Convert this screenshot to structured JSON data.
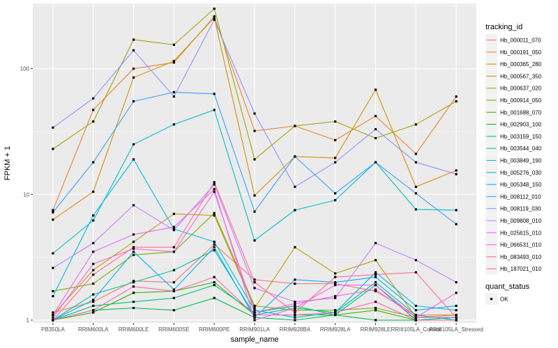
{
  "chart_data": {
    "type": "line",
    "xlabel": "sample_name",
    "ylabel": "FPKM + 1",
    "y_scale": "log10",
    "ylim": [
      0.95,
      330
    ],
    "y_ticks": [
      {
        "value": 1,
        "label": "1"
      },
      {
        "value": 10,
        "label": "10"
      },
      {
        "value": 100,
        "label": "100"
      }
    ],
    "categories": [
      "PB350LA",
      "RRIM600LA",
      "RRIM600LE",
      "RRIM600SE",
      "RRIM600PE",
      "RRIM901LA",
      "RRIM928BA",
      "RRIM928LA",
      "RRIM928LE",
      "RRIII105LA_Control",
      "RRIII105LA_Stressed"
    ],
    "panel_background": "#ebebeb",
    "grid_color": "#ffffff",
    "legend": {
      "title": "tracking_id",
      "position": "right"
    },
    "legend2": {
      "title": "quant_status",
      "items": [
        {
          "label": "OK"
        }
      ]
    },
    "series": [
      {
        "name": "Hb_000011_070",
        "color": "#F8766D",
        "values": [
          1.15,
          1.4,
          2.05,
          2.0,
          4.0,
          2.1,
          1.95,
          1.95,
          1.7,
          1.1,
          1.1
        ]
      },
      {
        "name": "Hb_000191_050",
        "color": "#EA8331",
        "values": [
          7.5,
          47,
          100,
          112,
          260,
          32,
          35,
          27,
          42,
          21,
          60
        ]
      },
      {
        "name": "Hb_000365_280",
        "color": "#D89000",
        "values": [
          6.3,
          10.5,
          85,
          115,
          255,
          9.8,
          20,
          19.5,
          68,
          11.5,
          15.5
        ]
      },
      {
        "name": "Hb_000567_350",
        "color": "#C09B00",
        "values": [
          1.1,
          2.5,
          4.2,
          7.0,
          6.8,
          1.25,
          3.8,
          2.35,
          3.0,
          1.05,
          1.1
        ]
      },
      {
        "name": "Hb_000637_020",
        "color": "#A3A500",
        "values": [
          23,
          38,
          170,
          155,
          300,
          19,
          35,
          38,
          28,
          36,
          55
        ]
      },
      {
        "name": "Hb_000914_050",
        "color": "#7CAE00",
        "values": [
          1.7,
          1.95,
          3.3,
          3.5,
          7.1,
          1.3,
          1.2,
          1.2,
          1.25,
          1.05,
          1.05
        ]
      },
      {
        "name": "Hb_001688_070",
        "color": "#39B600",
        "values": [
          1.0,
          1.15,
          1.65,
          1.7,
          2.0,
          1.1,
          1.1,
          1.1,
          1.2,
          1.0,
          1.0
        ]
      },
      {
        "name": "Hb_002903_100",
        "color": "#00BB4E",
        "values": [
          1.0,
          1.2,
          1.25,
          1.2,
          1.5,
          1.05,
          1.0,
          1.1,
          1.0,
          1.0,
          1.0
        ]
      },
      {
        "name": "Hb_003159_150",
        "color": "#00BF7D",
        "values": [
          1.0,
          1.3,
          1.4,
          1.5,
          1.9,
          1.15,
          1.3,
          1.1,
          1.9,
          1.0,
          1.05
        ]
      },
      {
        "name": "Hb_003544_040",
        "color": "#00C1A3",
        "values": [
          1.0,
          1.6,
          2.0,
          2.5,
          3.6,
          1.1,
          1.25,
          1.15,
          2.0,
          1.1,
          1.0
        ]
      },
      {
        "name": "Hb_003849_190",
        "color": "#00BFC4",
        "values": [
          3.4,
          6.2,
          25,
          36,
          47,
          4.3,
          7.5,
          9.0,
          18,
          7.6,
          7.5
        ]
      },
      {
        "name": "Hb_005276_030",
        "color": "#00BAE0",
        "values": [
          1.55,
          6.8,
          19,
          5.3,
          4.2,
          1.2,
          1.05,
          1.15,
          2.4,
          1.3,
          1.2
        ]
      },
      {
        "name": "Hb_005348_150",
        "color": "#00B0F6",
        "values": [
          1.0,
          1.45,
          3.5,
          1.75,
          3.8,
          1.05,
          2.1,
          2.0,
          2.2,
          1.2,
          1.3
        ]
      },
      {
        "name": "Hb_008112_010",
        "color": "#35A2FF",
        "values": [
          7.2,
          18,
          55,
          65,
          63,
          7.3,
          20,
          10.2,
          18,
          10.2,
          5.8
        ]
      },
      {
        "name": "Hb_008119_030",
        "color": "#9590FF",
        "values": [
          34,
          58,
          140,
          60,
          245,
          44,
          11.5,
          18,
          33,
          18,
          14.5
        ]
      },
      {
        "name": "Hb_009808_010",
        "color": "#C77CFF",
        "values": [
          2.6,
          4.1,
          8.2,
          5.2,
          12,
          1.8,
          1.4,
          1.5,
          4.1,
          3.0,
          2.0
        ]
      },
      {
        "name": "Hb_025615_010",
        "color": "#E76BF3",
        "values": [
          1.1,
          3.5,
          4.8,
          5.5,
          11,
          1.0,
          1.25,
          1.9,
          1.9,
          1.05,
          1.05
        ]
      },
      {
        "name": "Hb_066531_010",
        "color": "#FA62DB",
        "values": [
          1.05,
          2.8,
          3.7,
          3.5,
          10.5,
          1.15,
          1.35,
          1.55,
          1.75,
          1.05,
          1.65
        ]
      },
      {
        "name": "Hb_083493_010",
        "color": "#FF62BC",
        "values": [
          1.0,
          1.2,
          1.85,
          1.7,
          2.2,
          1.1,
          1.1,
          1.15,
          1.4,
          1.0,
          1.0
        ]
      },
      {
        "name": "Hb_187021_010",
        "color": "#FF6C91",
        "values": [
          1.0,
          2.3,
          3.8,
          3.8,
          12.5,
          2.0,
          1.15,
          2.2,
          2.3,
          2.4,
          1.05
        ]
      }
    ]
  }
}
